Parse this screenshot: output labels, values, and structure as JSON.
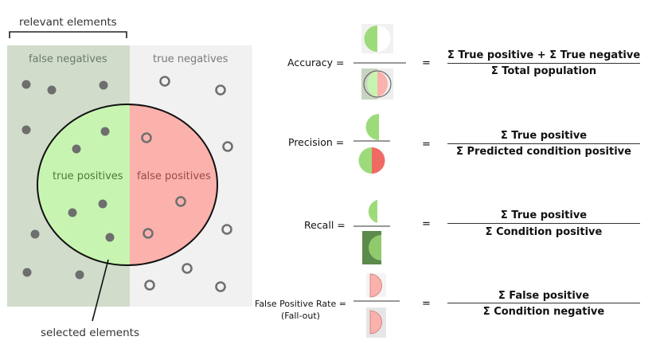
{
  "diagram": {
    "labels": {
      "relevant": "relevant elements",
      "false_negatives": "false negatives",
      "true_negatives": "true negatives",
      "true_positives": "true positives",
      "false_positives": "false positives",
      "selected": "selected elements"
    },
    "colors": {
      "relevant_bg": "#d1dccb",
      "irrelevant_bg": "#f1f1f1",
      "true_positive": "#c7f5b1",
      "false_positive": "#fbb1ac",
      "dot": "#6e6e6e"
    }
  },
  "metrics": [
    {
      "name": "Accuracy =",
      "equals": "=",
      "numerator": "Σ True positive + Σ True negative",
      "denominator": "Σ Total population"
    },
    {
      "name": "Precision =",
      "equals": "=",
      "numerator": "Σ True positive",
      "denominator": "Σ Predicted condition positive"
    },
    {
      "name": "Recall =",
      "equals": "=",
      "numerator": "Σ True positive",
      "denominator": "Σ Condition positive"
    },
    {
      "name": "False Positive Rate =",
      "subname": "(Fall-out)",
      "equals": "=",
      "numerator": "Σ False positive",
      "denominator": "Σ Condition negative"
    }
  ]
}
